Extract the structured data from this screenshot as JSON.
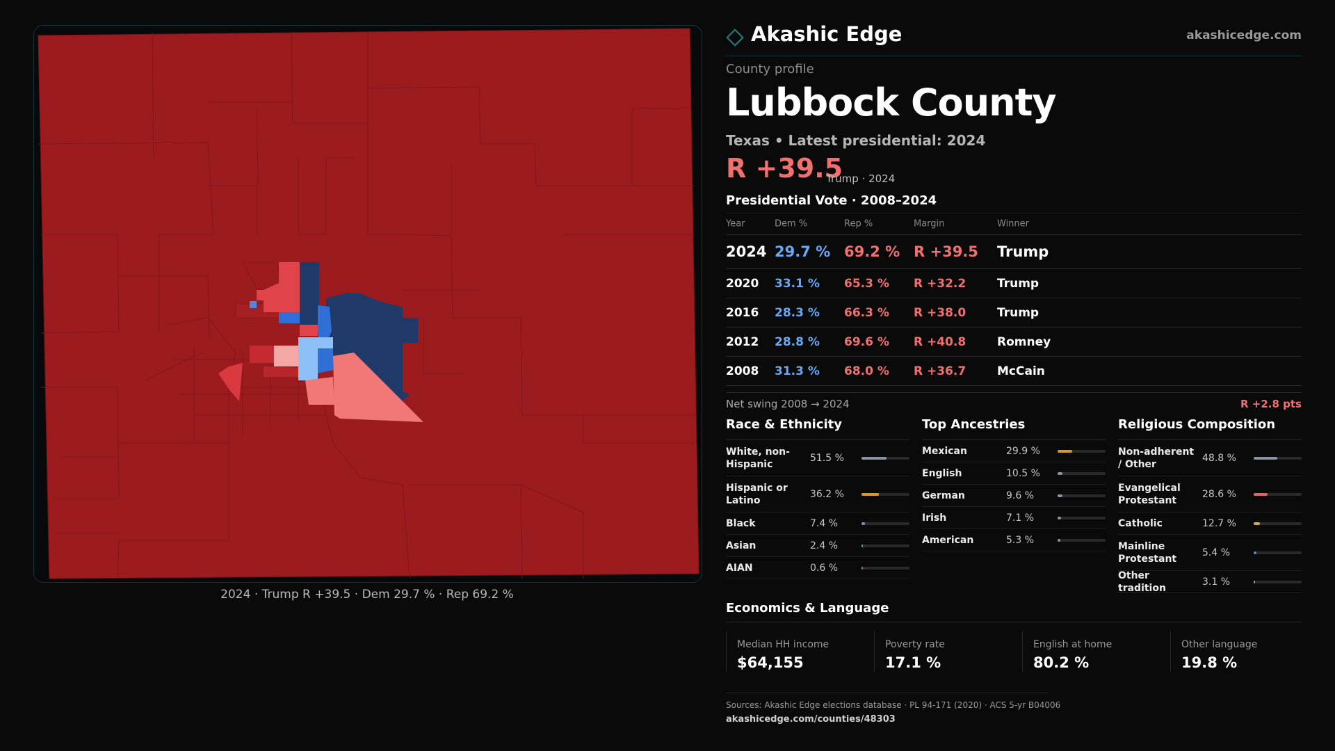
{
  "brand": {
    "name": "Akashic Edge",
    "url": "akashicedge.com"
  },
  "profile": {
    "eyebrow": "County profile",
    "county": "Lubbock County",
    "subtitle": "Texas • Latest presidential: 2024",
    "margin_headline": "R +39.5",
    "margin_note": "Trump · 2024"
  },
  "map": {
    "caption": "2024 · Trump R +39.5 · Dem 29.7 % · Rep 69.2 %",
    "colors": {
      "base_red": "#9c1b1f",
      "red": "#e0434a",
      "light_red": "#f07878",
      "pink": "#f4a8a5",
      "dark_blue": "#1f3a68",
      "blue": "#2f6fd6",
      "light_blue": "#8cc0f6"
    }
  },
  "vote_table": {
    "title": "Presidential Vote · 2008–2024",
    "headers": {
      "year": "Year",
      "dem": "Dem %",
      "rep": "Rep %",
      "margin": "Margin",
      "winner": "Winner"
    },
    "rows": [
      {
        "year": "2024",
        "dem": "29.7 %",
        "rep": "69.2 %",
        "margin": "R +39.5",
        "winner": "Trump"
      },
      {
        "year": "2020",
        "dem": "33.1 %",
        "rep": "65.3 %",
        "margin": "R +32.2",
        "winner": "Trump"
      },
      {
        "year": "2016",
        "dem": "28.3 %",
        "rep": "66.3 %",
        "margin": "R +38.0",
        "winner": "Trump"
      },
      {
        "year": "2012",
        "dem": "28.8 %",
        "rep": "69.6 %",
        "margin": "R +40.8",
        "winner": "Romney"
      },
      {
        "year": "2008",
        "dem": "31.3 %",
        "rep": "68.0 %",
        "margin": "R +36.7",
        "winner": "McCain"
      }
    ],
    "swing_label": "Net swing 2008 → 2024",
    "swing_value": "R +2.8 pts"
  },
  "demographics": {
    "race": {
      "title": "Race & Ethnicity",
      "items": [
        {
          "label": "White, non-Hispanic",
          "value": "51.5 %",
          "share": 0.515,
          "color": "#8a93a6"
        },
        {
          "label": "Hispanic or Latino",
          "value": "36.2 %",
          "share": 0.362,
          "color": "#d99a1e"
        },
        {
          "label": "Black",
          "value": "7.4 %",
          "share": 0.074,
          "color": "#8f7fd6"
        },
        {
          "label": "Asian",
          "value": "2.4 %",
          "share": 0.024,
          "color": "#2fb49a"
        },
        {
          "label": "AIAN",
          "value": "0.6 %",
          "share": 0.006,
          "color": "#c96a3a"
        }
      ]
    },
    "ancestry": {
      "title": "Top Ancestries",
      "items": [
        {
          "label": "Mexican",
          "value": "29.9 %",
          "share": 0.299,
          "color": "#d99a1e"
        },
        {
          "label": "English",
          "value": "10.5 %",
          "share": 0.105,
          "color": "#8a93a6"
        },
        {
          "label": "German",
          "value": "9.6 %",
          "share": 0.096,
          "color": "#8a93a6"
        },
        {
          "label": "Irish",
          "value": "7.1 %",
          "share": 0.071,
          "color": "#8a93a6"
        },
        {
          "label": "American",
          "value": "5.3 %",
          "share": 0.053,
          "color": "#8a93a6"
        }
      ]
    },
    "religion": {
      "title": "Religious Composition",
      "items": [
        {
          "label": "Non-adherent / Other",
          "value": "48.8 %",
          "share": 0.488,
          "color": "#8a93a6"
        },
        {
          "label": "Evangelical Protestant",
          "value": "28.6 %",
          "share": 0.286,
          "color": "#e0636a"
        },
        {
          "label": "Catholic",
          "value": "12.7 %",
          "share": 0.127,
          "color": "#d6b41e"
        },
        {
          "label": "Mainline Protestant",
          "value": "5.4 %",
          "share": 0.054,
          "color": "#4f86e0"
        },
        {
          "label": "Other tradition",
          "value": "3.1 %",
          "share": 0.031,
          "color": "#9a9a9a"
        }
      ]
    }
  },
  "economics": {
    "title": "Economics & Language",
    "items": [
      {
        "label": "Median HH income",
        "value": "$64,155"
      },
      {
        "label": "Poverty rate",
        "value": "17.1 %"
      },
      {
        "label": "English at home",
        "value": "80.2 %"
      },
      {
        "label": "Other language",
        "value": "19.8 %"
      }
    ]
  },
  "sources": {
    "text": "Sources: Akashic Edge elections database · PL 94-171 (2020) · ACS 5-yr B04006",
    "url": "akashicedge.com/counties/48303"
  }
}
